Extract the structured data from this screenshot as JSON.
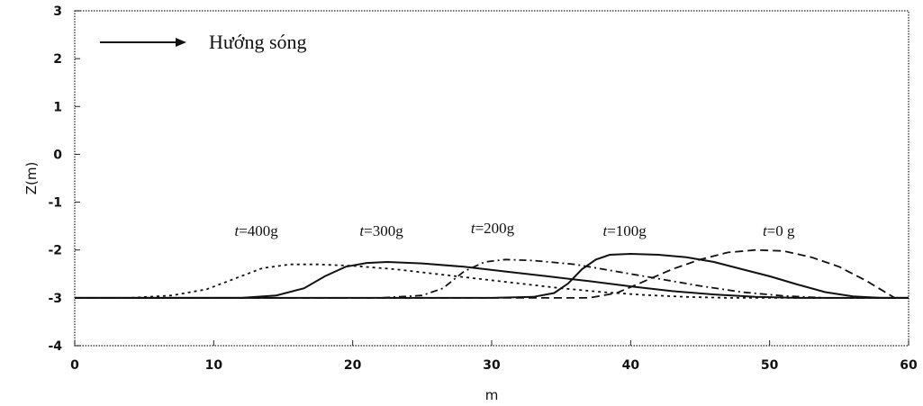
{
  "chart_data": {
    "type": "line",
    "title": "",
    "xlabel": "m",
    "ylabel": "Z(m)",
    "xlim": [
      0,
      60
    ],
    "ylim": [
      -4,
      3
    ],
    "x_ticks": [
      "0",
      "10",
      "20",
      "30",
      "40",
      "50",
      "60"
    ],
    "y_ticks": [
      "3",
      "2",
      "1",
      "0",
      "-1",
      "-2",
      "-3",
      "-4"
    ],
    "grid": false,
    "legend": {
      "text": "Hướng sóng",
      "position": "top-left",
      "symbol": "arrow-right"
    },
    "series": [
      {
        "name": "t=0 g",
        "italic_prefix": "t",
        "label_suffix": "=0 g",
        "style": "dashed",
        "points": [
          [
            0,
            -3
          ],
          [
            37,
            -3
          ],
          [
            39,
            -2.9
          ],
          [
            41,
            -2.65
          ],
          [
            43,
            -2.4
          ],
          [
            45,
            -2.2
          ],
          [
            47,
            -2.05
          ],
          [
            49,
            -2.0
          ],
          [
            51,
            -2.02
          ],
          [
            53,
            -2.15
          ],
          [
            55,
            -2.35
          ],
          [
            57,
            -2.65
          ],
          [
            59,
            -3
          ],
          [
            60,
            -3
          ]
        ]
      },
      {
        "name": "t=100g",
        "italic_prefix": "t",
        "label_suffix": "=100g",
        "style": "solid",
        "points": [
          [
            0,
            -3
          ],
          [
            30,
            -3
          ],
          [
            33,
            -2.98
          ],
          [
            34.5,
            -2.9
          ],
          [
            35.5,
            -2.7
          ],
          [
            36.5,
            -2.4
          ],
          [
            37.5,
            -2.2
          ],
          [
            38.5,
            -2.1
          ],
          [
            40,
            -2.08
          ],
          [
            42,
            -2.1
          ],
          [
            44,
            -2.15
          ],
          [
            46,
            -2.25
          ],
          [
            48,
            -2.4
          ],
          [
            50,
            -2.55
          ],
          [
            52,
            -2.72
          ],
          [
            54,
            -2.88
          ],
          [
            56,
            -2.97
          ],
          [
            58,
            -3
          ],
          [
            60,
            -3
          ]
        ]
      },
      {
        "name": "t=200g",
        "italic_prefix": "t",
        "label_suffix": "=200g",
        "style": "dashdot",
        "points": [
          [
            0,
            -3
          ],
          [
            22,
            -3
          ],
          [
            25,
            -2.95
          ],
          [
            26.5,
            -2.8
          ],
          [
            28,
            -2.45
          ],
          [
            29.5,
            -2.25
          ],
          [
            31,
            -2.2
          ],
          [
            33,
            -2.22
          ],
          [
            36,
            -2.3
          ],
          [
            39,
            -2.45
          ],
          [
            42,
            -2.6
          ],
          [
            45,
            -2.75
          ],
          [
            48,
            -2.88
          ],
          [
            51,
            -2.96
          ],
          [
            54,
            -3
          ],
          [
            60,
            -3
          ]
        ]
      },
      {
        "name": "t=300g",
        "italic_prefix": "t",
        "label_suffix": "=300g",
        "style": "solid",
        "points": [
          [
            0,
            -3
          ],
          [
            12,
            -3
          ],
          [
            14.5,
            -2.95
          ],
          [
            16.5,
            -2.8
          ],
          [
            18,
            -2.55
          ],
          [
            19.5,
            -2.35
          ],
          [
            21,
            -2.27
          ],
          [
            22.5,
            -2.25
          ],
          [
            25,
            -2.28
          ],
          [
            28,
            -2.35
          ],
          [
            31,
            -2.45
          ],
          [
            34,
            -2.55
          ],
          [
            37,
            -2.65
          ],
          [
            40,
            -2.76
          ],
          [
            43,
            -2.86
          ],
          [
            46,
            -2.93
          ],
          [
            49,
            -2.98
          ],
          [
            52,
            -3
          ],
          [
            60,
            -3
          ]
        ]
      },
      {
        "name": "t=400g",
        "italic_prefix": "t",
        "label_suffix": "=400g",
        "style": "dotted",
        "points": [
          [
            0,
            -3
          ],
          [
            4,
            -3
          ],
          [
            7,
            -2.95
          ],
          [
            9.5,
            -2.82
          ],
          [
            11.5,
            -2.6
          ],
          [
            13.5,
            -2.38
          ],
          [
            15.5,
            -2.3
          ],
          [
            17.5,
            -2.3
          ],
          [
            20,
            -2.33
          ],
          [
            23,
            -2.4
          ],
          [
            26,
            -2.5
          ],
          [
            29,
            -2.6
          ],
          [
            32,
            -2.7
          ],
          [
            35,
            -2.8
          ],
          [
            38,
            -2.88
          ],
          [
            41,
            -2.94
          ],
          [
            44,
            -2.98
          ],
          [
            47,
            -3
          ],
          [
            60,
            -3
          ]
        ]
      }
    ],
    "series_label_positions": [
      [
        49.5,
        -1.7
      ],
      [
        38,
        -1.7
      ],
      [
        28.5,
        -1.65
      ],
      [
        20.5,
        -1.7
      ],
      [
        11.5,
        -1.7
      ]
    ]
  }
}
